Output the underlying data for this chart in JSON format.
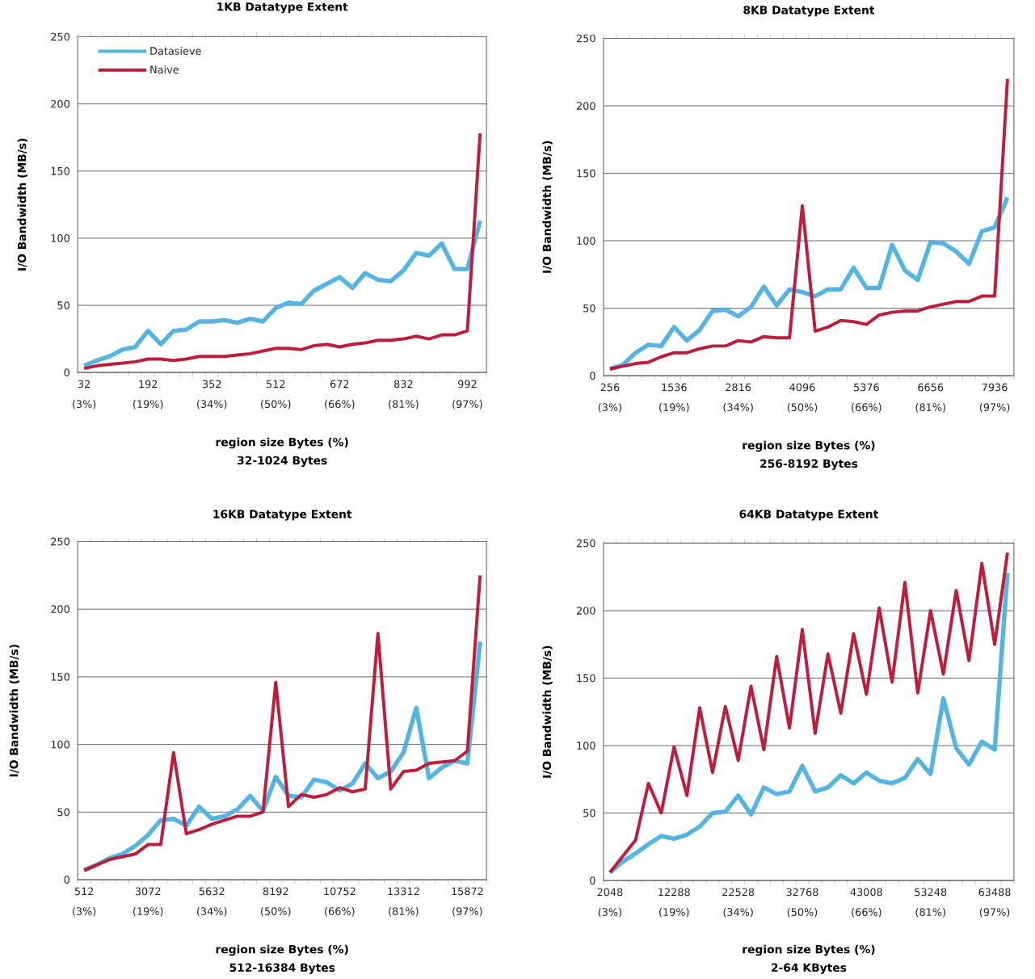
{
  "chart_data": [
    {
      "type": "line",
      "title": "1KB Datatype Extent",
      "xlabel": "region size Bytes (%)",
      "ylabel": "I/O Bandwidth (MB/s)",
      "annotations": [
        "32-1024 Bytes"
      ],
      "categories": [
        "32 (3%)",
        null,
        null,
        null,
        null,
        "192 (19%)",
        null,
        null,
        null,
        null,
        "352 (34%)",
        null,
        null,
        null,
        null,
        "512 (50%)",
        null,
        null,
        null,
        null,
        "672 (66%)",
        null,
        null,
        null,
        null,
        "832 (81%)",
        null,
        null,
        null,
        null,
        "992 (97%)",
        null
      ],
      "series": [
        {
          "name": "Datasieve",
          "color": "#56b4e3",
          "values": [
            5,
            9,
            12,
            17,
            19,
            31,
            21,
            31,
            32,
            38,
            38,
            39,
            37,
            40,
            38,
            48,
            52,
            51,
            61,
            66,
            71,
            63,
            74,
            69,
            68,
            76,
            89,
            87,
            96,
            77,
            77,
            113
          ]
        },
        {
          "name": "Naive",
          "color": "#be1e3c",
          "values": [
            3,
            5,
            6,
            7,
            8,
            10,
            10,
            9,
            10,
            12,
            12,
            12,
            13,
            14,
            16,
            18,
            18,
            17,
            20,
            21,
            19,
            21,
            22,
            24,
            24,
            25,
            27,
            25,
            28,
            28,
            31,
            178
          ]
        }
      ],
      "ylim": [
        0,
        250
      ],
      "yticks": [
        0,
        50,
        100,
        150,
        200,
        250
      ],
      "grid": "y",
      "legend": "top left"
    },
    {
      "type": "line",
      "title": "8KB Datatype Extent",
      "xlabel": "region size Bytes (%)",
      "ylabel": "I/O Bandwidth (MB/s)",
      "annotations": [
        "256-8192 Bytes"
      ],
      "categories": [
        "256 (3%)",
        null,
        null,
        null,
        null,
        "1536 (19%)",
        null,
        null,
        null,
        null,
        "2816 (34%)",
        null,
        null,
        null,
        null,
        "4096 (50%)",
        null,
        null,
        null,
        null,
        "5376 (66%)",
        null,
        null,
        null,
        null,
        "6656 (81%)",
        null,
        null,
        null,
        null,
        "7936 (97%)",
        null
      ],
      "series": [
        {
          "color": "#56b4e3",
          "values": [
            5,
            8,
            17,
            23,
            22,
            36,
            26,
            34,
            48,
            49,
            44,
            51,
            66,
            52,
            64,
            62,
            59,
            64,
            64,
            80,
            65,
            65,
            97,
            78,
            71,
            99,
            98,
            92,
            83,
            107,
            110,
            132
          ]
        },
        {
          "color": "#be1e3c",
          "values": [
            5,
            7,
            9,
            10,
            14,
            17,
            17,
            20,
            22,
            22,
            26,
            25,
            29,
            28,
            28,
            126,
            33,
            36,
            41,
            40,
            38,
            45,
            47,
            48,
            48,
            51,
            53,
            55,
            55,
            59,
            59,
            220
          ]
        }
      ],
      "ylim": [
        0,
        250
      ],
      "yticks": [
        0,
        50,
        100,
        150,
        200,
        250
      ],
      "grid": "y"
    },
    {
      "type": "line",
      "title": "16KB Datatype Extent",
      "xlabel": "region size Bytes (%)",
      "ylabel": "I/O Bandwidth (MB/s)",
      "annotations": [
        "512-16384 Bytes"
      ],
      "categories": [
        "512 (3%)",
        null,
        null,
        null,
        null,
        "3072 (19%)",
        null,
        null,
        null,
        null,
        "5632 (34%)",
        null,
        null,
        null,
        null,
        "8192 (50%)",
        null,
        null,
        null,
        null,
        "10752 (66%)",
        null,
        null,
        null,
        null,
        "13312 (81%)",
        null,
        null,
        null,
        null,
        "15872 (97%)",
        null
      ],
      "series": [
        {
          "color": "#56b4e3",
          "values": [
            7,
            11,
            16,
            19,
            25,
            33,
            44,
            45,
            40,
            54,
            45,
            47,
            52,
            62,
            51,
            76,
            62,
            61,
            74,
            72,
            66,
            71,
            86,
            75,
            80,
            94,
            127,
            75,
            83,
            88,
            86,
            176
          ]
        },
        {
          "color": "#be1e3c",
          "values": [
            7,
            11,
            15,
            17,
            19,
            26,
            26,
            94,
            34,
            37,
            41,
            44,
            47,
            47,
            50,
            146,
            54,
            63,
            61,
            63,
            68,
            65,
            67,
            182,
            67,
            80,
            81,
            86,
            87,
            88,
            95,
            225
          ]
        }
      ],
      "ylim": [
        0,
        250
      ],
      "yticks": [
        0,
        50,
        100,
        150,
        200,
        250
      ],
      "grid": "y"
    },
    {
      "type": "line",
      "title": "64KB Datatype Extent",
      "xlabel": "region size Bytes (%)",
      "ylabel": "I/O Bandwidth (MB/s)",
      "annotations": [
        "2-64 KBytes"
      ],
      "categories": [
        "2048 (3%)",
        null,
        null,
        null,
        null,
        "12288 (19%)",
        null,
        null,
        null,
        null,
        "22528 (34%)",
        null,
        null,
        null,
        null,
        "32768 (50%)",
        null,
        null,
        null,
        null,
        "43008 (66%)",
        null,
        null,
        null,
        null,
        "53248 (81%)",
        null,
        null,
        null,
        null,
        "63488 (97%)",
        null
      ],
      "series": [
        {
          "color": "#56b4e3",
          "values": [
            6,
            14,
            20,
            27,
            33,
            31,
            34,
            40,
            50,
            51,
            63,
            49,
            69,
            64,
            66,
            85,
            66,
            69,
            78,
            72,
            80,
            74,
            72,
            76,
            90,
            79,
            135,
            98,
            86,
            103,
            97,
            228
          ]
        },
        {
          "color": "#be1e3c",
          "values": [
            6,
            18,
            30,
            72,
            50,
            99,
            63,
            128,
            80,
            129,
            89,
            144,
            97,
            166,
            113,
            186,
            109,
            168,
            124,
            183,
            138,
            202,
            147,
            221,
            139,
            200,
            153,
            215,
            163,
            235,
            175,
            243
          ]
        }
      ],
      "ylim": [
        0,
        250
      ],
      "yticks": [
        0,
        50,
        100,
        150,
        200,
        250
      ],
      "grid": "y"
    }
  ]
}
